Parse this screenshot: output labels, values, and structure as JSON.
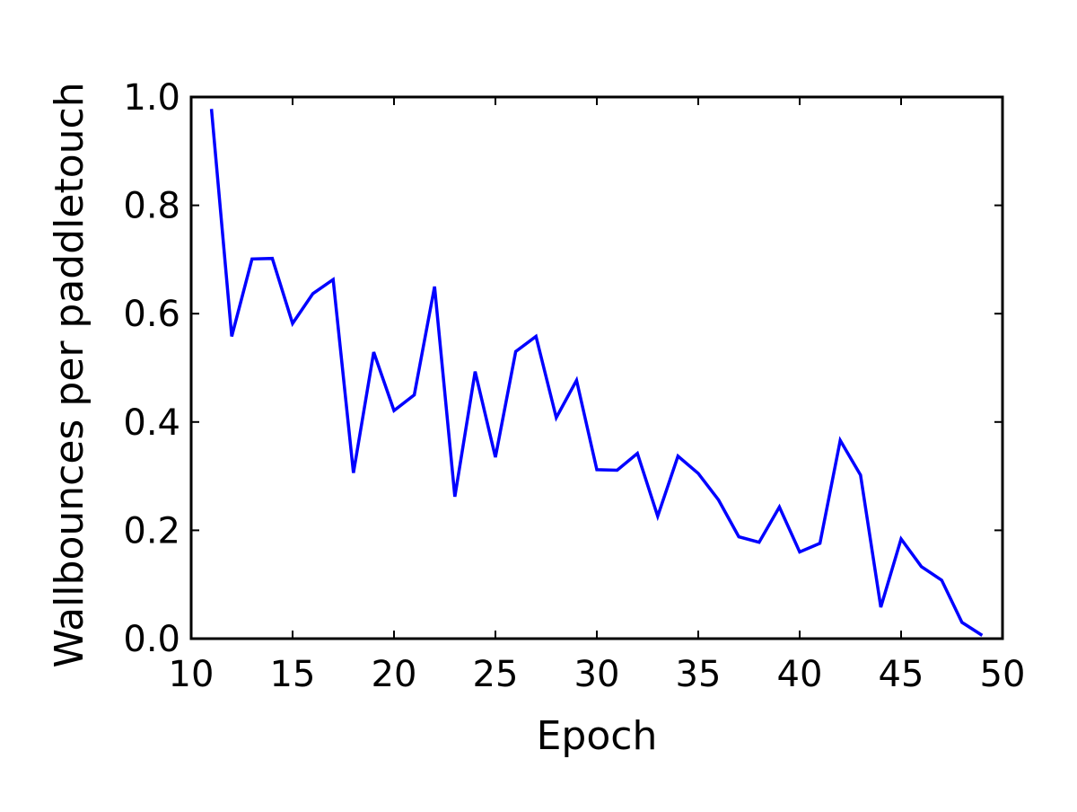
{
  "chart_data": {
    "type": "line",
    "title": "",
    "xlabel": "Epoch",
    "ylabel": "Wallbounces per paddletouch",
    "xlim": [
      10,
      50
    ],
    "ylim": [
      0.0,
      1.0
    ],
    "xticks": [
      10,
      15,
      20,
      25,
      30,
      35,
      40,
      45,
      50
    ],
    "xtick_labels": [
      "10",
      "15",
      "20",
      "25",
      "30",
      "35",
      "40",
      "45",
      "50"
    ],
    "yticks": [
      0.0,
      0.2,
      0.4,
      0.6,
      0.8,
      1.0
    ],
    "ytick_labels": [
      "0.0",
      "0.2",
      "0.4",
      "0.6",
      "0.8",
      "1.0"
    ],
    "grid": false,
    "legend": "none",
    "series": [
      {
        "color": "#0000ff",
        "x": [
          11,
          12,
          13,
          14,
          15,
          16,
          17,
          18,
          19,
          20,
          21,
          22,
          23,
          24,
          25,
          26,
          27,
          28,
          29,
          30,
          31,
          32,
          33,
          34,
          35,
          36,
          37,
          38,
          39,
          40,
          41,
          42,
          43,
          44,
          45,
          46,
          47,
          48,
          49
        ],
        "y": [
          0.978,
          0.558,
          0.701,
          0.702,
          0.582,
          0.637,
          0.663,
          0.306,
          0.529,
          0.421,
          0.45,
          0.65,
          0.262,
          0.493,
          0.335,
          0.53,
          0.558,
          0.408,
          0.477,
          0.312,
          0.311,
          0.342,
          0.226,
          0.337,
          0.305,
          0.256,
          0.188,
          0.178,
          0.243,
          0.16,
          0.176,
          0.366,
          0.302,
          0.058,
          0.184,
          0.133,
          0.108,
          0.03,
          0.006
        ]
      }
    ]
  }
}
